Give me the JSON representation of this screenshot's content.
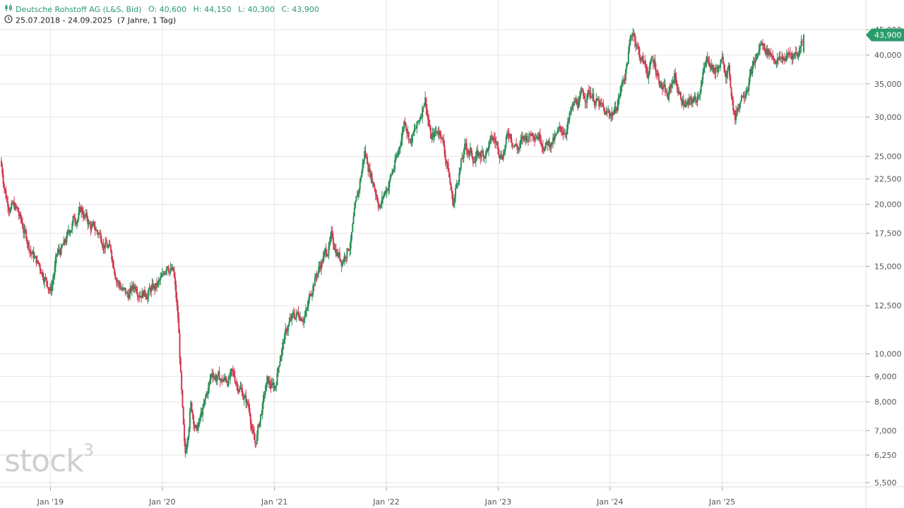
{
  "header": {
    "instrument": "Deutsche Rohstoff AG (L&S, Bid)",
    "open_label": "O:",
    "open": "40,600",
    "high_label": "H:",
    "high": "44,150",
    "low_label": "L:",
    "low": "40,300",
    "close_label": "C:",
    "close": "43,900",
    "range": "25.07.2018 - 24.09.2025",
    "span": "(7 Jahre, 1 Tag)"
  },
  "watermark": "stock",
  "watermark_sup": "3",
  "colors": {
    "up": "#2a8f5a",
    "down": "#d23a52",
    "grid": "#e6e6e6",
    "axis_text": "#555555",
    "badge": "#2a9b6b"
  },
  "chart_data": {
    "type": "candlestick",
    "scale": "log",
    "grid": true,
    "last_price_label": "43,900",
    "y_ticks": [
      {
        "v": 45000,
        "label": "45,000"
      },
      {
        "v": 40000,
        "label": "40,000"
      },
      {
        "v": 35000,
        "label": "35,000"
      },
      {
        "v": 30000,
        "label": "30,000"
      },
      {
        "v": 25000,
        "label": "25,000"
      },
      {
        "v": 22500,
        "label": "22,500"
      },
      {
        "v": 20000,
        "label": "20,000"
      },
      {
        "v": 17500,
        "label": "17,500"
      },
      {
        "v": 15000,
        "label": "15,000"
      },
      {
        "v": 12500,
        "label": "12,500"
      },
      {
        "v": 10000,
        "label": "10,000"
      },
      {
        "v": 9000,
        "label": "9,000"
      },
      {
        "v": 8000,
        "label": "8,000"
      },
      {
        "v": 7000,
        "label": "7,000"
      },
      {
        "v": 6250,
        "label": "6,250"
      },
      {
        "v": 5500,
        "label": "5,500"
      }
    ],
    "x_ticks": [
      {
        "date": "2019-01-01",
        "label": "Jan '19"
      },
      {
        "date": "2020-01-01",
        "label": "Jan '20"
      },
      {
        "date": "2021-01-01",
        "label": "Jan '21"
      },
      {
        "date": "2022-01-01",
        "label": "Jan '22"
      },
      {
        "date": "2023-01-01",
        "label": "Jan '23"
      },
      {
        "date": "2024-01-01",
        "label": "Jan '24"
      },
      {
        "date": "2025-01-01",
        "label": "Jan '25"
      }
    ],
    "x_range": [
      "2018-07-25",
      "2025-09-24"
    ],
    "price_path": [
      [
        "2018-07-25",
        24500
      ],
      [
        "2018-08-15",
        20500
      ],
      [
        "2018-09-15",
        19500
      ],
      [
        "2018-10-15",
        17300
      ],
      [
        "2018-11-15",
        15500
      ],
      [
        "2018-12-15",
        14500
      ],
      [
        "2019-01-05",
        13500
      ],
      [
        "2019-01-25",
        15700
      ],
      [
        "2019-02-20",
        16500
      ],
      [
        "2019-03-20",
        18700
      ],
      [
        "2019-04-15",
        19500
      ],
      [
        "2019-05-15",
        18000
      ],
      [
        "2019-06-20",
        17300
      ],
      [
        "2019-07-20",
        16000
      ],
      [
        "2019-08-15",
        14000
      ],
      [
        "2019-09-10",
        13000
      ],
      [
        "2019-10-10",
        13800
      ],
      [
        "2019-11-10",
        13400
      ],
      [
        "2019-12-10",
        13500
      ],
      [
        "2020-01-05",
        14000
      ],
      [
        "2020-01-20",
        15500
      ],
      [
        "2020-02-10",
        14500
      ],
      [
        "2020-02-25",
        11500
      ],
      [
        "2020-03-10",
        7500
      ],
      [
        "2020-03-18",
        6000
      ],
      [
        "2020-04-05",
        8000
      ],
      [
        "2020-04-25",
        7000
      ],
      [
        "2020-05-20",
        7800
      ],
      [
        "2020-06-15",
        9200
      ],
      [
        "2020-07-15",
        8800
      ],
      [
        "2020-08-15",
        9000
      ],
      [
        "2020-09-15",
        8600
      ],
      [
        "2020-10-15",
        7700
      ],
      [
        "2020-11-01",
        6500
      ],
      [
        "2020-11-20",
        7500
      ],
      [
        "2020-12-10",
        8700
      ],
      [
        "2021-01-05",
        8500
      ],
      [
        "2021-01-25",
        10200
      ],
      [
        "2021-02-20",
        11500
      ],
      [
        "2021-03-20",
        12000
      ],
      [
        "2021-04-20",
        12200
      ],
      [
        "2021-05-10",
        14000
      ],
      [
        "2021-06-10",
        15500
      ],
      [
        "2021-07-10",
        17000
      ],
      [
        "2021-08-10",
        15500
      ],
      [
        "2021-09-10",
        17000
      ],
      [
        "2021-10-05",
        21000
      ],
      [
        "2021-10-25",
        25500
      ],
      [
        "2021-11-20",
        22500
      ],
      [
        "2021-12-15",
        20000
      ],
      [
        "2022-01-10",
        22000
      ],
      [
        "2022-02-10",
        25000
      ],
      [
        "2022-03-05",
        30000
      ],
      [
        "2022-03-25",
        27000
      ],
      [
        "2022-04-20",
        29000
      ],
      [
        "2022-05-10",
        33500
      ],
      [
        "2022-05-30",
        27000
      ],
      [
        "2022-06-30",
        28500
      ],
      [
        "2022-07-25",
        23500
      ],
      [
        "2022-08-10",
        20000
      ],
      [
        "2022-08-30",
        23500
      ],
      [
        "2022-09-20",
        26000
      ],
      [
        "2022-10-20",
        24800
      ],
      [
        "2022-11-20",
        25500
      ],
      [
        "2022-12-20",
        27000
      ],
      [
        "2023-01-15",
        25500
      ],
      [
        "2023-02-10",
        28000
      ],
      [
        "2023-03-10",
        26000
      ],
      [
        "2023-04-10",
        27500
      ],
      [
        "2023-05-10",
        28500
      ],
      [
        "2023-06-10",
        26500
      ],
      [
        "2023-07-10",
        27000
      ],
      [
        "2023-08-10",
        28500
      ],
      [
        "2023-09-10",
        31500
      ],
      [
        "2023-10-10",
        33000
      ],
      [
        "2023-11-01",
        34000
      ],
      [
        "2023-11-25",
        32000
      ],
      [
        "2023-12-20",
        30000
      ],
      [
        "2024-01-20",
        31000
      ],
      [
        "2024-02-10",
        34500
      ],
      [
        "2024-02-25",
        37500
      ],
      [
        "2024-03-10",
        42500
      ],
      [
        "2024-03-20",
        45000
      ],
      [
        "2024-04-10",
        40000
      ],
      [
        "2024-05-05",
        37000
      ],
      [
        "2024-05-25",
        39000
      ],
      [
        "2024-06-20",
        35000
      ],
      [
        "2024-07-10",
        32500
      ],
      [
        "2024-08-01",
        36500
      ],
      [
        "2024-08-20",
        33000
      ],
      [
        "2024-09-15",
        31500
      ],
      [
        "2024-10-10",
        32500
      ],
      [
        "2024-10-30",
        36000
      ],
      [
        "2024-11-20",
        39500
      ],
      [
        "2024-12-10",
        37000
      ],
      [
        "2025-01-05",
        38500
      ],
      [
        "2025-01-25",
        37000
      ],
      [
        "2025-02-15",
        30000
      ],
      [
        "2025-03-05",
        33000
      ],
      [
        "2025-03-25",
        35500
      ],
      [
        "2025-04-20",
        38500
      ],
      [
        "2025-05-10",
        42000
      ],
      [
        "2025-06-10",
        40500
      ],
      [
        "2025-07-10",
        39000
      ],
      [
        "2025-08-10",
        40000
      ],
      [
        "2025-09-10",
        40600
      ],
      [
        "2025-09-24",
        43900
      ]
    ],
    "last_bar": {
      "open": 40600,
      "high": 44150,
      "low": 40300,
      "close": 43900
    }
  }
}
